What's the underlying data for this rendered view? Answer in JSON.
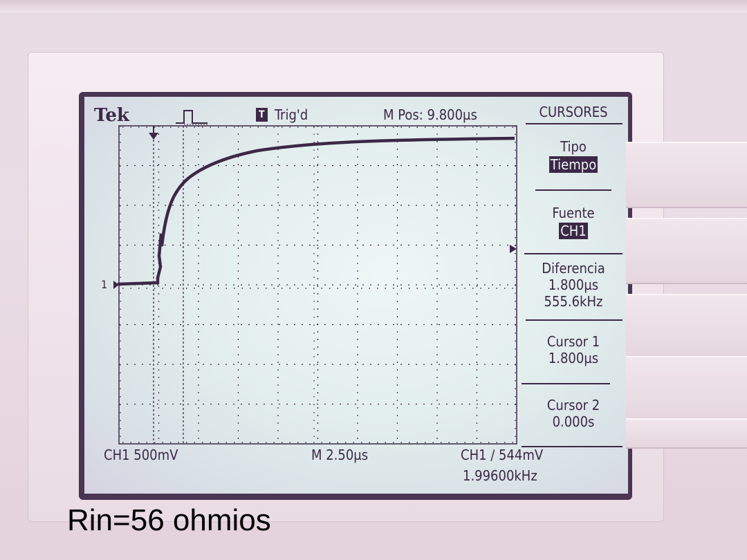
{
  "header": {
    "brand": "Tek",
    "trigger_status": "Trig'd",
    "trigger_letter": "T",
    "m_pos": "M Pos: 9.800µs"
  },
  "menu": {
    "title": "CURSORES",
    "tipo_label": "Tipo",
    "tipo_value": "Tiempo",
    "fuente_label": "Fuente",
    "fuente_value": "CH1",
    "diferencia_label": "Diferencia",
    "diferencia_time": "1.800µs",
    "diferencia_freq": "555.6kHz",
    "cursor1_label": "Cursor 1",
    "cursor1_value": "1.800µs",
    "cursor2_label": "Cursor 2",
    "cursor2_value": "0.000s"
  },
  "footer": {
    "ch1_scale": "CH1  500mV",
    "timebase": "M 2.50µs",
    "trigger_info": "CH1 ∕ 544mV",
    "frequency": "1.99600kHz"
  },
  "channel_marker": "1",
  "caption": "Rin=56 ohmios",
  "colors": {
    "lcd_ink": "#3c2846",
    "lcd_background": "#e3eeee",
    "bezel": "#f1e6ec"
  }
}
